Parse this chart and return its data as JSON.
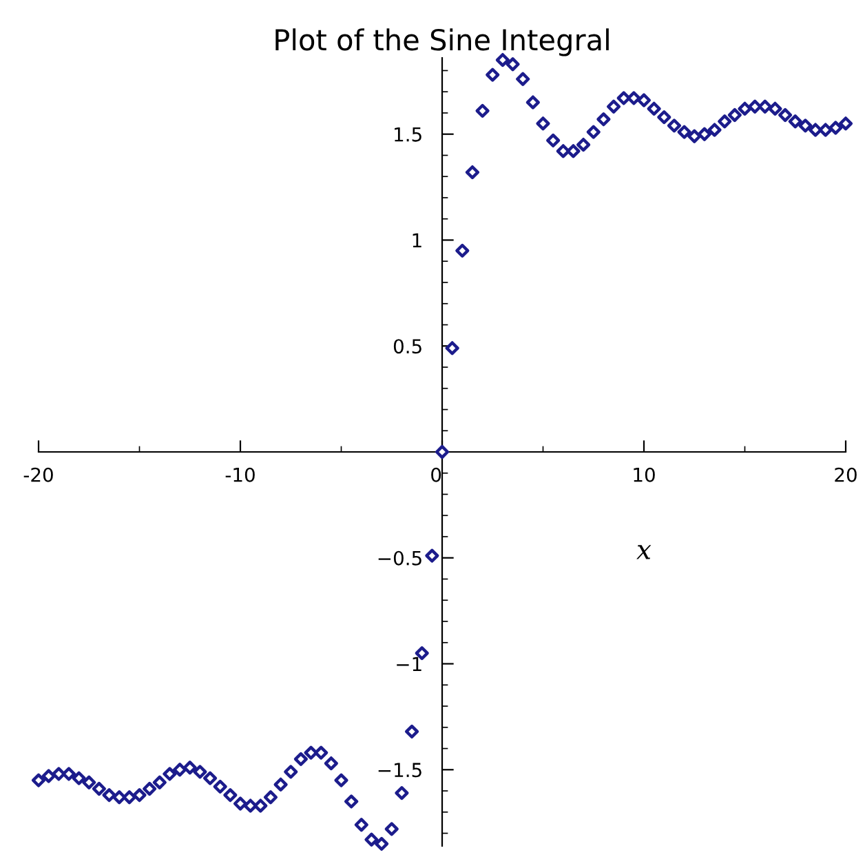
{
  "chart_data": {
    "type": "scatter",
    "title": "Plot of the Sine Integral",
    "xlabel": "x",
    "x": [
      -20,
      -19.5,
      -19,
      -18.5,
      -18,
      -17.5,
      -17,
      -16.5,
      -16,
      -15.5,
      -15,
      -14.5,
      -14,
      -13.5,
      -13,
      -12.5,
      -12,
      -11.5,
      -11,
      -10.5,
      -10,
      -9.5,
      -9,
      -8.5,
      -8,
      -7.5,
      -7,
      -6.5,
      -6,
      -5.5,
      -5,
      -4.5,
      -4,
      -3.5,
      -3,
      -2.5,
      -2,
      -1.5,
      -1,
      -0.5,
      0,
      0.5,
      1,
      1.5,
      2,
      2.5,
      3,
      3.5,
      4,
      4.5,
      5,
      5.5,
      6,
      6.5,
      7,
      7.5,
      8,
      8.5,
      9,
      9.5,
      10,
      10.5,
      11,
      11.5,
      12,
      12.5,
      13,
      13.5,
      14,
      14.5,
      15,
      15.5,
      16,
      16.5,
      17,
      17.5,
      18,
      18.5,
      19,
      19.5,
      20
    ],
    "series": [
      {
        "color": "#1c1c8c",
        "values": [
          -1.55,
          -1.53,
          -1.52,
          -1.52,
          -1.54,
          -1.56,
          -1.59,
          -1.62,
          -1.63,
          -1.63,
          -1.62,
          -1.59,
          -1.56,
          -1.52,
          -1.5,
          -1.49,
          -1.51,
          -1.54,
          -1.58,
          -1.62,
          -1.66,
          -1.67,
          -1.67,
          -1.63,
          -1.57,
          -1.51,
          -1.45,
          -1.42,
          -1.42,
          -1.47,
          -1.55,
          -1.65,
          -1.76,
          -1.83,
          -1.85,
          -1.78,
          -1.61,
          -1.32,
          -0.95,
          -0.49,
          0,
          0.49,
          0.95,
          1.32,
          1.61,
          1.78,
          1.85,
          1.83,
          1.76,
          1.65,
          1.55,
          1.47,
          1.42,
          1.42,
          1.45,
          1.51,
          1.57,
          1.63,
          1.67,
          1.67,
          1.66,
          1.62,
          1.58,
          1.54,
          1.51,
          1.49,
          1.5,
          1.52,
          1.56,
          1.59,
          1.62,
          1.63,
          1.63,
          1.62,
          1.59,
          1.56,
          1.54,
          1.52,
          1.52,
          1.53,
          1.55
        ]
      }
    ],
    "xlim": [
      -20,
      20
    ],
    "ylim": [
      -1.86,
      1.86
    ],
    "xticks": [
      {
        "value": -20,
        "label": "-20"
      },
      {
        "value": -10,
        "label": "-10"
      },
      0,
      10,
      20
    ],
    "yticks": [
      {
        "value": -1.5,
        "label": "−1.5"
      },
      {
        "value": -1,
        "label": "−1"
      },
      {
        "value": -0.5,
        "label": "−0.5"
      },
      0.5,
      1,
      1.5
    ],
    "marker": "diamond",
    "grid": false,
    "legend": false
  }
}
